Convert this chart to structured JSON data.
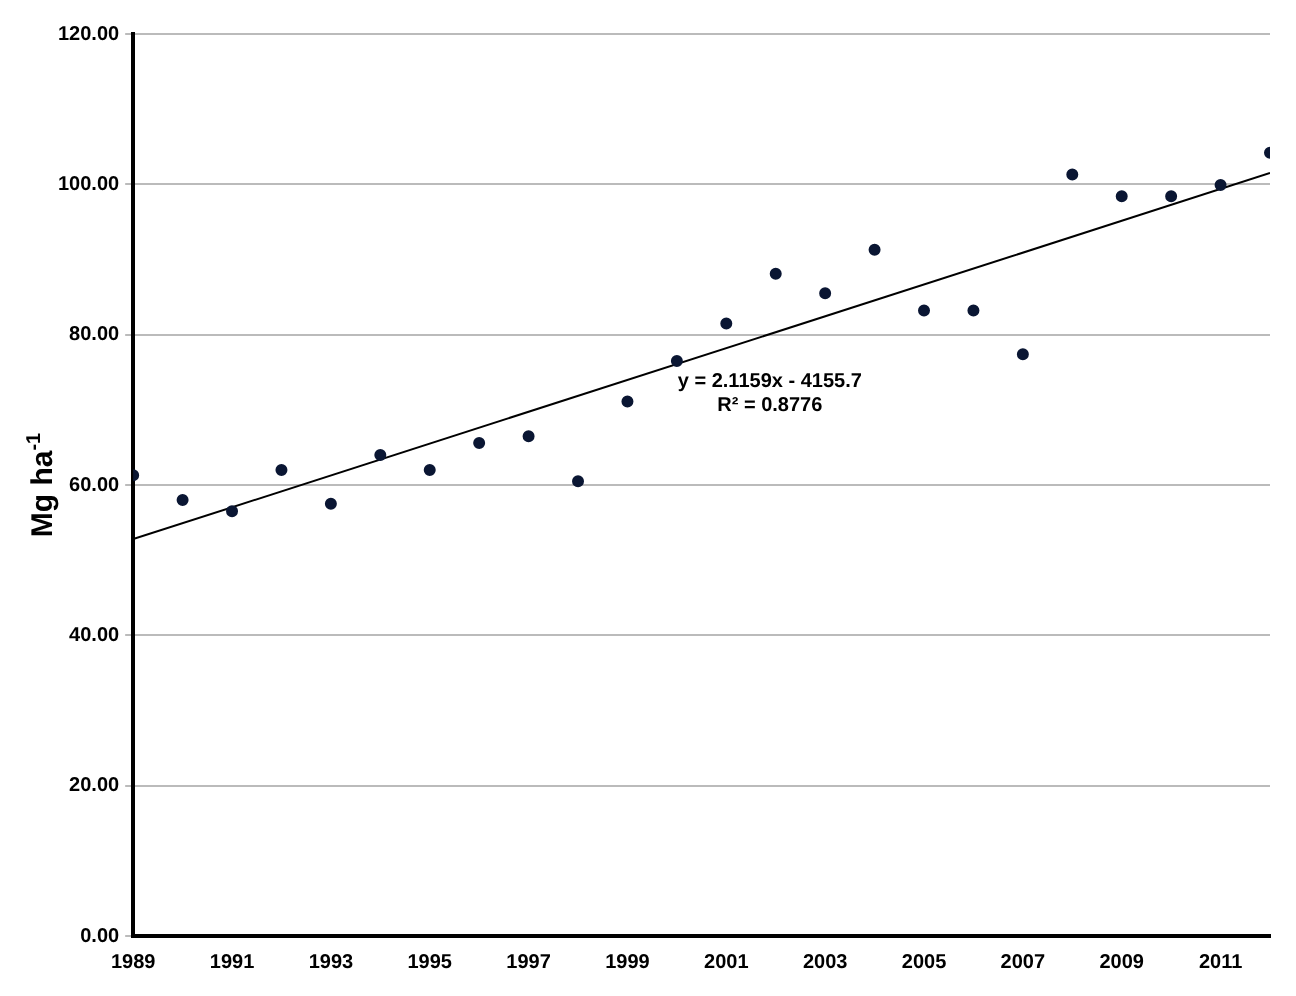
{
  "chart_data": {
    "type": "scatter",
    "ylabel": "Mg ha$^{-1}$",
    "xlim": [
      1989,
      2012
    ],
    "xticks": [
      1989,
      1991,
      1993,
      1995,
      1997,
      1999,
      2001,
      2003,
      2005,
      2007,
      2009,
      2011
    ],
    "ylim": [
      0,
      120
    ],
    "yticks": [
      {
        "value": 0,
        "label": "0.00"
      },
      {
        "value": 20,
        "label": "20.00"
      },
      {
        "value": 40,
        "label": "40.00"
      },
      {
        "value": 60,
        "label": "60.00"
      },
      {
        "value": 80,
        "label": "80.00"
      },
      {
        "value": 100,
        "label": "100.00"
      },
      {
        "value": 120,
        "label": "120.00"
      }
    ],
    "grid": "y",
    "legend": false,
    "x": [
      1989,
      1990,
      1991,
      1992,
      1993,
      1994,
      1995,
      1996,
      1997,
      1998,
      1999,
      2000,
      2001,
      2002,
      2003,
      2004,
      2005,
      2006,
      2007,
      2008,
      2009,
      2010,
      2011,
      2012
    ],
    "series": [
      {
        "color": "#0a1633",
        "marker": "circle",
        "values": [
          61.3,
          58.0,
          56.5,
          62.0,
          57.5,
          64.0,
          62.0,
          65.6,
          66.5,
          60.5,
          71.1,
          76.5,
          81.5,
          88.1,
          85.5,
          91.3,
          83.2,
          83.2,
          77.4,
          101.3,
          98.4,
          98.4,
          99.9,
          104.2
        ]
      },
      {
        "type": "line",
        "color": "#000000",
        "marker": "none",
        "line_style": "solid",
        "x": [
          1989,
          2012
        ],
        "values": [
          52.8,
          101.5
        ]
      }
    ],
    "annotations": [
      "y = 2.1159x - 4155.7",
      "R² = 0.8776"
    ]
  }
}
